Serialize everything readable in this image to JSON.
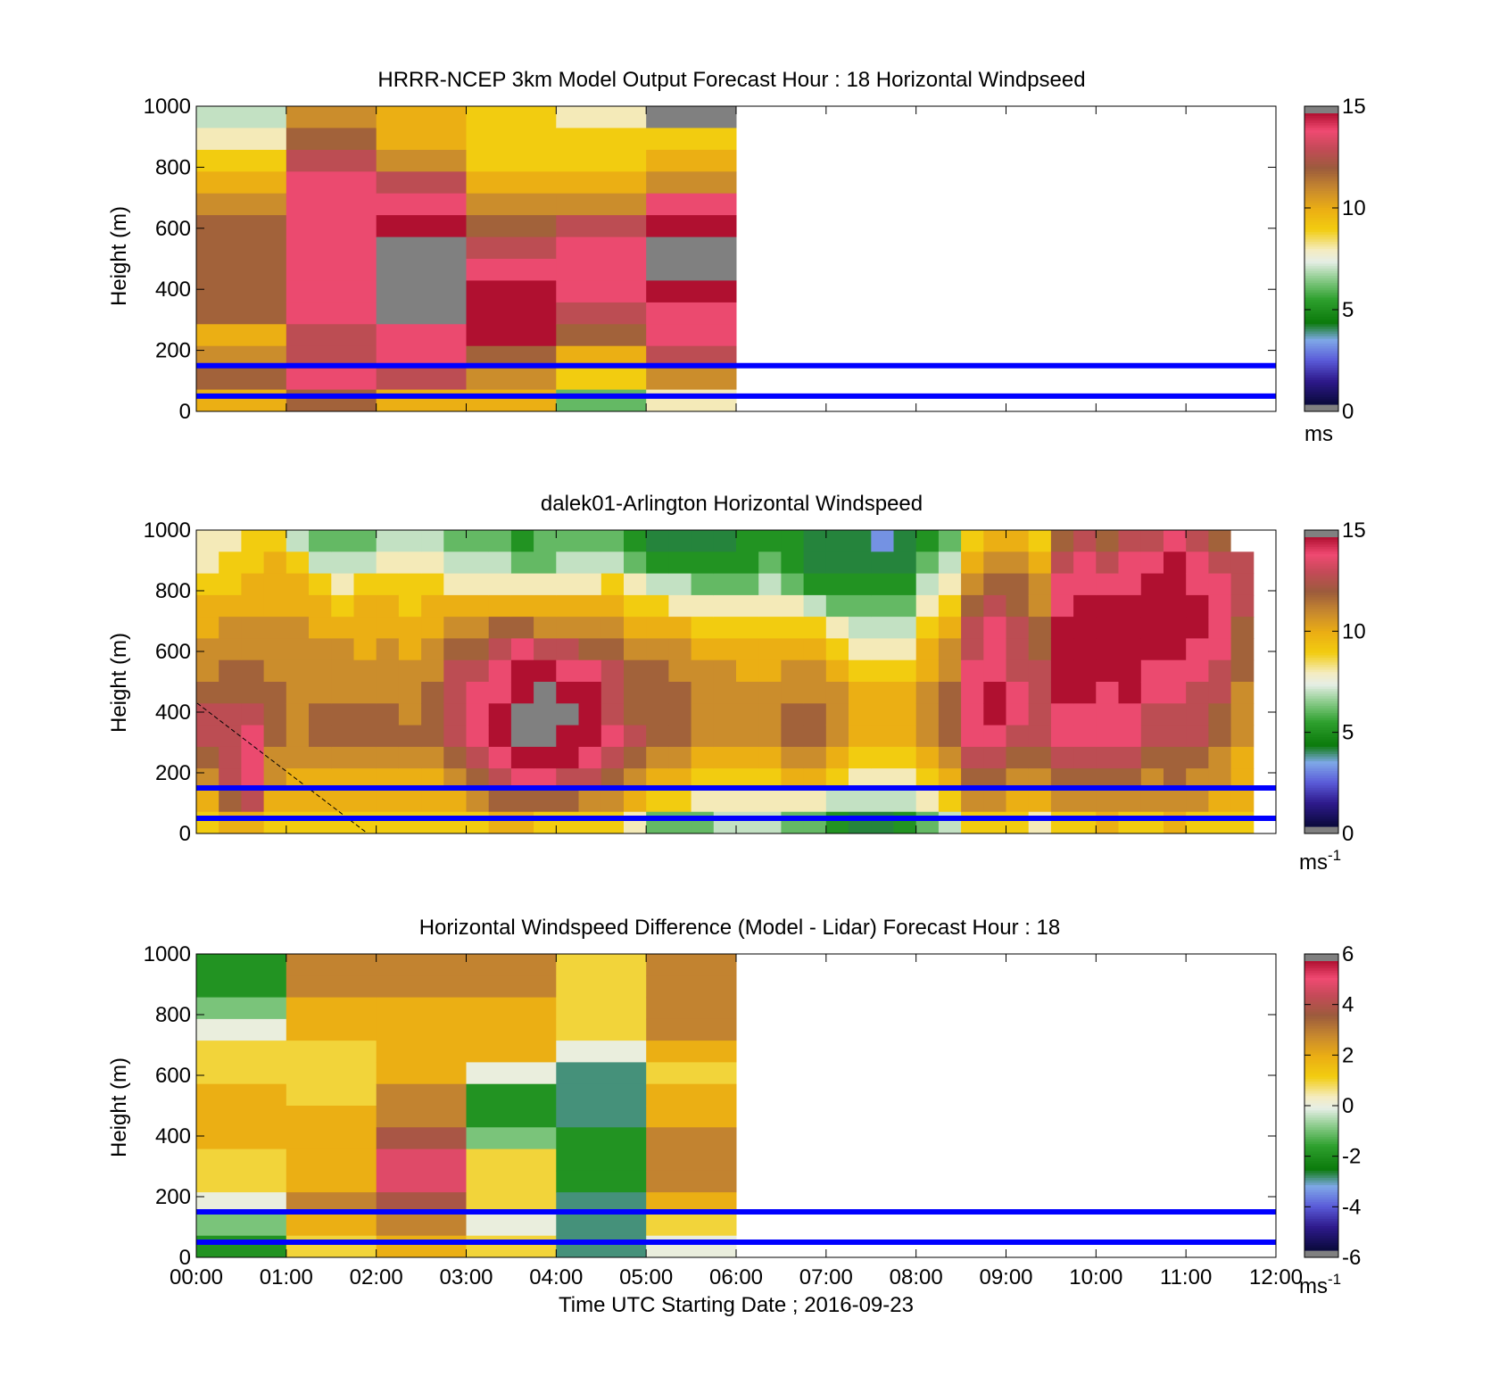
{
  "figure": {
    "xlabel": "Time UTC  Starting Date ; 2016-09-23",
    "xtick_labels": [
      "00:00",
      "01:00",
      "02:00",
      "03:00",
      "04:00",
      "05:00",
      "06:00",
      "07:00",
      "08:00",
      "09:00",
      "10:00",
      "11:00",
      "12:00"
    ],
    "reference_line_color": "#0000ff",
    "reference_heights_m": [
      150,
      50
    ]
  },
  "chart_data": [
    {
      "type": "heatmap",
      "title": "HRRR-NCEP 3km Model Output   Forecast Hour : 18 Horizontal Windpseed",
      "ylabel": "Height (m)",
      "ylim": [
        0,
        1000
      ],
      "yticks": [
        "0",
        "200",
        "400",
        "600",
        "800",
        "1000"
      ],
      "xlim_hours": [
        0,
        12
      ],
      "colorbar": {
        "range": [
          0,
          15
        ],
        "ticks": [
          "0",
          "5",
          "10",
          "15"
        ],
        "unit_base": "ms",
        "unit_sup": ""
      },
      "hourly_profiles_top_to_bottom": [
        {
          "hour": 0,
          "values": [
            7,
            8,
            9,
            10,
            11,
            12,
            12,
            12,
            12,
            12,
            10,
            11,
            12,
            10
          ]
        },
        {
          "hour": 1,
          "values": [
            11,
            12,
            13,
            14,
            14,
            14,
            14,
            14,
            14,
            14,
            13,
            13,
            14,
            12
          ]
        },
        {
          "hour": 2,
          "values": [
            10,
            10,
            11,
            13,
            14,
            15,
            16,
            16,
            16,
            16,
            14,
            14,
            13,
            10
          ]
        },
        {
          "hour": 3,
          "values": [
            9,
            9,
            9,
            10,
            11,
            12,
            13,
            14,
            15,
            15,
            15,
            12,
            11,
            10
          ]
        },
        {
          "hour": 4,
          "values": [
            8,
            9,
            9,
            10,
            11,
            13,
            14,
            14,
            14,
            13,
            12,
            10,
            9,
            6
          ]
        },
        {
          "hour": 5,
          "values": [
            16,
            9,
            10,
            11,
            14,
            15,
            16,
            16,
            15,
            14,
            14,
            13,
            11,
            8
          ]
        }
      ]
    },
    {
      "type": "heatmap",
      "title": "dalek01-Arlington  Horizontal Windspeed",
      "ylabel": "Height (m)",
      "ylim": [
        0,
        1000
      ],
      "yticks": [
        "0",
        "200",
        "400",
        "600",
        "800",
        "1000"
      ],
      "xlim_hours": [
        0,
        12
      ],
      "colorbar": {
        "range": [
          0,
          15
        ],
        "ticks": [
          "0",
          "5",
          "10",
          "15"
        ],
        "unit_base": "ms",
        "unit_sup": "-1"
      },
      "profiles_every_15_min_top_to_bottom": [
        [
          8,
          8,
          9,
          10,
          10,
          11,
          11,
          12,
          13,
          13,
          12,
          11,
          10,
          9
        ],
        [
          8,
          9,
          9,
          10,
          11,
          11,
          12,
          12,
          13,
          13,
          13,
          13,
          12,
          10
        ],
        [
          9,
          9,
          10,
          10,
          11,
          11,
          12,
          12,
          13,
          14,
          14,
          14,
          13,
          10
        ],
        [
          9,
          10,
          10,
          10,
          11,
          11,
          11,
          12,
          12,
          12,
          11,
          11,
          10,
          9
        ],
        [
          7,
          9,
          10,
          10,
          11,
          11,
          11,
          11,
          11,
          11,
          11,
          10,
          10,
          9
        ],
        [
          6,
          7,
          9,
          10,
          10,
          11,
          11,
          11,
          12,
          12,
          11,
          10,
          10,
          9
        ],
        [
          6,
          7,
          8,
          9,
          10,
          11,
          11,
          11,
          12,
          12,
          11,
          10,
          10,
          9
        ],
        [
          6,
          7,
          9,
          10,
          10,
          10,
          11,
          11,
          12,
          12,
          11,
          10,
          10,
          9
        ],
        [
          7,
          8,
          9,
          10,
          10,
          11,
          11,
          11,
          12,
          12,
          11,
          10,
          10,
          9
        ],
        [
          7,
          8,
          9,
          9,
          10,
          10,
          11,
          11,
          11,
          12,
          11,
          10,
          10,
          9
        ],
        [
          7,
          8,
          9,
          10,
          10,
          11,
          11,
          12,
          12,
          12,
          11,
          10,
          10,
          9
        ],
        [
          6,
          7,
          8,
          10,
          11,
          12,
          13,
          13,
          13,
          13,
          12,
          11,
          10,
          9
        ],
        [
          6,
          7,
          8,
          10,
          11,
          12,
          13,
          14,
          14,
          14,
          13,
          12,
          11,
          9
        ],
        [
          6,
          7,
          8,
          10,
          12,
          13,
          14,
          14,
          15,
          15,
          14,
          13,
          12,
          10
        ],
        [
          5,
          6,
          8,
          10,
          12,
          14,
          15,
          15,
          16,
          16,
          15,
          14,
          12,
          10
        ],
        [
          6,
          6,
          8,
          10,
          11,
          13,
          15,
          16,
          16,
          16,
          15,
          14,
          12,
          9
        ],
        [
          6,
          7,
          8,
          10,
          11,
          13,
          14,
          15,
          16,
          15,
          15,
          13,
          12,
          9
        ],
        [
          6,
          7,
          8,
          10,
          11,
          12,
          14,
          15,
          15,
          15,
          14,
          13,
          11,
          9
        ],
        [
          6,
          7,
          9,
          10,
          11,
          12,
          13,
          13,
          13,
          14,
          13,
          12,
          11,
          9
        ],
        [
          5,
          6,
          8,
          9,
          10,
          11,
          12,
          12,
          12,
          13,
          12,
          11,
          10,
          8
        ],
        [
          4,
          5,
          7,
          9,
          10,
          11,
          12,
          12,
          12,
          12,
          11,
          10,
          9,
          6
        ],
        [
          4,
          5,
          7,
          8,
          10,
          11,
          11,
          12,
          12,
          12,
          11,
          10,
          9,
          6
        ],
        [
          4,
          5,
          6,
          8,
          9,
          10,
          11,
          11,
          11,
          11,
          10,
          9,
          8,
          6
        ],
        [
          4,
          5,
          6,
          8,
          9,
          10,
          11,
          11,
          11,
          11,
          10,
          9,
          8,
          7
        ],
        [
          5,
          5,
          6,
          8,
          9,
          10,
          10,
          11,
          11,
          11,
          10,
          9,
          8,
          7
        ],
        [
          5,
          6,
          7,
          8,
          9,
          10,
          10,
          11,
          11,
          11,
          10,
          9,
          8,
          7
        ],
        [
          5,
          5,
          6,
          8,
          9,
          10,
          11,
          11,
          12,
          12,
          11,
          10,
          8,
          6
        ],
        [
          4,
          4,
          5,
          7,
          9,
          10,
          11,
          11,
          12,
          12,
          11,
          10,
          8,
          6
        ],
        [
          4,
          4,
          5,
          6,
          8,
          9,
          10,
          11,
          11,
          11,
          10,
          9,
          7,
          5
        ],
        [
          4,
          4,
          5,
          6,
          7,
          8,
          9,
          10,
          10,
          10,
          9,
          8,
          7,
          4
        ],
        [
          3,
          4,
          5,
          6,
          7,
          8,
          9,
          10,
          10,
          10,
          9,
          8,
          7,
          4
        ],
        [
          4,
          4,
          5,
          6,
          7,
          8,
          9,
          10,
          10,
          10,
          9,
          8,
          7,
          5
        ],
        [
          5,
          6,
          7,
          8,
          9,
          10,
          10,
          11,
          11,
          11,
          10,
          9,
          8,
          6
        ],
        [
          6,
          7,
          8,
          9,
          10,
          11,
          11,
          12,
          12,
          12,
          11,
          10,
          9,
          7
        ],
        [
          9,
          10,
          11,
          12,
          13,
          13,
          14,
          14,
          14,
          14,
          13,
          12,
          11,
          9
        ],
        [
          10,
          11,
          12,
          13,
          14,
          14,
          14,
          15,
          15,
          14,
          13,
          12,
          11,
          9
        ],
        [
          10,
          11,
          12,
          12,
          13,
          13,
          13,
          14,
          14,
          13,
          12,
          11,
          10,
          9
        ],
        [
          9,
          10,
          11,
          11,
          12,
          12,
          13,
          13,
          13,
          13,
          12,
          11,
          10,
          8
        ],
        [
          12,
          13,
          14,
          14,
          15,
          15,
          15,
          15,
          14,
          14,
          13,
          12,
          11,
          9
        ],
        [
          13,
          14,
          14,
          15,
          15,
          15,
          15,
          15,
          14,
          14,
          13,
          12,
          11,
          9
        ],
        [
          12,
          13,
          14,
          15,
          15,
          15,
          15,
          14,
          14,
          14,
          13,
          12,
          11,
          10
        ],
        [
          13,
          14,
          14,
          15,
          15,
          15,
          15,
          15,
          14,
          14,
          13,
          12,
          11,
          9
        ],
        [
          13,
          14,
          15,
          15,
          15,
          15,
          14,
          14,
          13,
          13,
          12,
          11,
          11,
          9
        ],
        [
          14,
          15,
          15,
          15,
          15,
          15,
          14,
          14,
          13,
          13,
          12,
          12,
          11,
          10
        ],
        [
          13,
          14,
          14,
          15,
          15,
          14,
          14,
          13,
          13,
          13,
          12,
          11,
          11,
          9
        ],
        [
          12,
          13,
          14,
          14,
          14,
          14,
          13,
          13,
          12,
          12,
          11,
          11,
          10,
          9
        ],
        [
          null,
          13,
          13,
          13,
          12,
          12,
          12,
          11,
          11,
          11,
          10,
          10,
          10,
          9
        ]
      ]
    },
    {
      "type": "heatmap",
      "title": "Horizontal Windspeed Difference (Model - Lidar) Forecast Hour : 18",
      "ylabel": "Height (m)",
      "ylim": [
        0,
        1000
      ],
      "yticks": [
        "0",
        "200",
        "400",
        "600",
        "800",
        "1000"
      ],
      "xlim_hours": [
        0,
        12
      ],
      "colorbar": {
        "range": [
          -6,
          6
        ],
        "ticks": [
          "-6",
          "-4",
          "-2",
          "0",
          "2",
          "4",
          "6"
        ],
        "unit_base": "ms",
        "unit_sup": "-1"
      },
      "hourly_profiles_top_to_bottom": [
        {
          "hour": 0,
          "values": [
            -2,
            -2,
            -1,
            0,
            1,
            1,
            2,
            2,
            2,
            1,
            1,
            0,
            -1,
            -2
          ]
        },
        {
          "hour": 1,
          "values": [
            3,
            3,
            2,
            2,
            1,
            1,
            1,
            2,
            2,
            2,
            2,
            3,
            2,
            1
          ]
        },
        {
          "hour": 2,
          "values": [
            3,
            3,
            2,
            2,
            2,
            2,
            3,
            3,
            4,
            5,
            5,
            4,
            3,
            2
          ]
        },
        {
          "hour": 3,
          "values": [
            3,
            3,
            2,
            2,
            2,
            0,
            -2,
            -2,
            -1,
            1,
            1,
            1,
            0,
            1
          ]
        },
        {
          "hour": 4,
          "values": [
            1,
            1,
            1,
            1,
            0,
            -3,
            -3,
            -3,
            -2,
            -2,
            -2,
            -3,
            -3,
            -3
          ]
        },
        {
          "hour": 5,
          "values": [
            3,
            3,
            3,
            3,
            2,
            1,
            2,
            2,
            3,
            3,
            3,
            2,
            1,
            0
          ]
        }
      ]
    }
  ]
}
